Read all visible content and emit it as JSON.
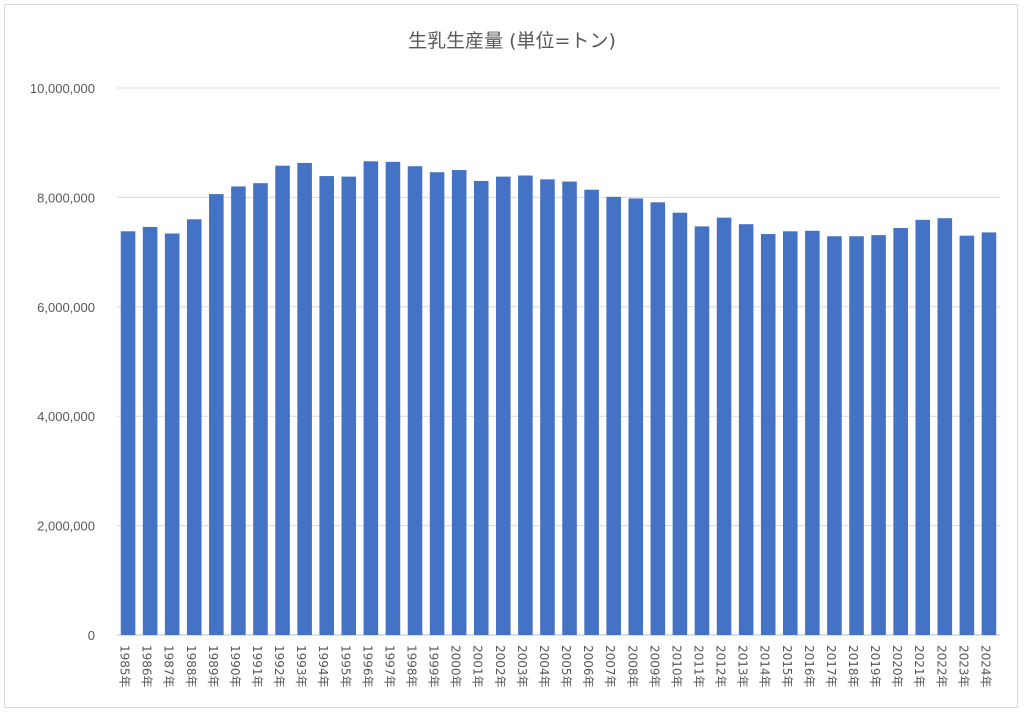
{
  "chart_data": {
    "type": "bar",
    "title": "生乳生産量 (単位=トン)",
    "xlabel": "",
    "ylabel": "",
    "ylim": [
      0,
      10000000
    ],
    "yticks": [
      0,
      2000000,
      4000000,
      6000000,
      8000000,
      10000000
    ],
    "ytick_labels": [
      "0",
      "2,000,000",
      "4,000,000",
      "6,000,000",
      "8,000,000",
      "10,000,000"
    ],
    "grid": true,
    "legend": "none",
    "bar_color": "#4472C4",
    "categories": [
      "1985年",
      "1986年",
      "1987年",
      "1988年",
      "1989年",
      "1990年",
      "1991年",
      "1992年",
      "1993年",
      "1994年",
      "1995年",
      "1996年",
      "1997年",
      "1998年",
      "1999年",
      "2000年",
      "2001年",
      "2002年",
      "2003年",
      "2004年",
      "2005年",
      "2006年",
      "2007年",
      "2008年",
      "2009年",
      "2010年",
      "2011年",
      "2012年",
      "2013年",
      "2014年",
      "2015年",
      "2016年",
      "2017年",
      "2018年",
      "2019年",
      "2020年",
      "2021年",
      "2022年",
      "2023年",
      "2024年"
    ],
    "values": [
      7380000,
      7460000,
      7340000,
      7600000,
      8060000,
      8200000,
      8260000,
      8580000,
      8630000,
      8390000,
      8380000,
      8660000,
      8650000,
      8570000,
      8460000,
      8500000,
      8300000,
      8380000,
      8400000,
      8330000,
      8290000,
      8140000,
      8010000,
      7980000,
      7910000,
      7720000,
      7470000,
      7630000,
      7510000,
      7330000,
      7380000,
      7390000,
      7290000,
      7290000,
      7310000,
      7440000,
      7590000,
      7620000,
      7300000,
      7360000
    ]
  }
}
